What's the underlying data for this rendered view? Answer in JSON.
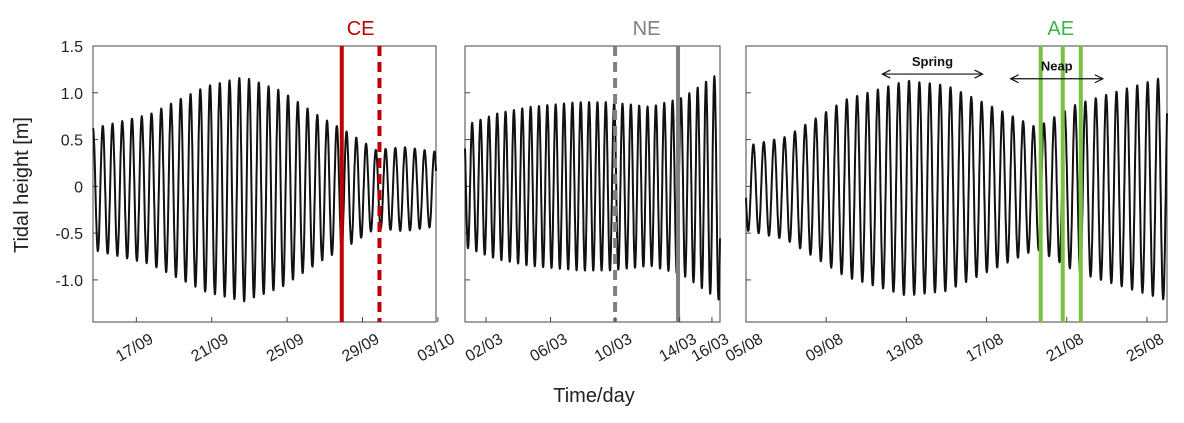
{
  "chart_data": {
    "type": "line",
    "ylabel": "Tidal height [m]",
    "xlabel": "Time/day",
    "ylim": [
      -1.45,
      1.5
    ],
    "yticks": [
      "1.5",
      "1.0",
      "0.5",
      "0",
      "-0.5",
      "-1.0"
    ],
    "yticks_values": [
      1.5,
      1.0,
      0.5,
      0,
      -0.5,
      -1.0
    ],
    "grid": false,
    "series_color": "#111111",
    "panels": [
      {
        "title": "CE",
        "title_color": "#c00000",
        "xticks": [
          "17/09",
          "21/09",
          "25/09",
          "29/09",
          "03/10"
        ],
        "xticks_days": [
          2.3,
          6.3,
          10.3,
          14.3,
          18.3
        ],
        "xlim_days": [
          0,
          18.2
        ],
        "series": {
          "t_start": 0,
          "t_end": 18.2,
          "envelope_days": [
            0,
            3,
            6,
            8,
            10,
            12,
            13.6,
            15,
            16.5,
            18.2
          ],
          "envelope_amps": [
            0.65,
            0.8,
            1.1,
            1.2,
            1.05,
            0.78,
            0.6,
            0.42,
            0.45,
            0.4
          ],
          "offset": -0.03
        },
        "vlines": [
          {
            "day": 13.2,
            "style": "solid",
            "color": "#c00000"
          },
          {
            "day": 15.2,
            "style": "dashed",
            "color": "#c00000"
          }
        ],
        "annotations": []
      },
      {
        "title": "NE",
        "title_color": "#808080",
        "xticks": [
          "02/03",
          "06/03",
          "10/03",
          "14/03",
          "16/03"
        ],
        "xticks_days": [
          1.3,
          5.3,
          9.3,
          13.3,
          15.3
        ],
        "xlim_days": [
          0,
          15.8
        ],
        "series": {
          "t_start": 0,
          "t_end": 15.8,
          "envelope_days": [
            0,
            2,
            4,
            7,
            9,
            11.5,
            13.5,
            15.8
          ],
          "envelope_amps": [
            0.65,
            0.78,
            0.85,
            0.9,
            0.9,
            0.85,
            0.95,
            1.22
          ],
          "offset": 0
        },
        "vlines": [
          {
            "day": 9.3,
            "style": "dashed",
            "color": "#808080"
          },
          {
            "day": 13.2,
            "style": "solid",
            "color": "#808080"
          }
        ],
        "annotations": []
      },
      {
        "title": "AE",
        "title_color": "#3cb44b",
        "xticks": [
          "05/08",
          "09/08",
          "13/08",
          "17/08",
          "21/08",
          "25/08"
        ],
        "xticks_days": [
          0,
          4,
          8,
          12,
          16,
          20
        ],
        "xlim_days": [
          0,
          21
        ],
        "series": {
          "t_start": 0,
          "t_end": 21,
          "envelope_days": [
            0,
            2,
            5,
            8,
            10,
            12.5,
            14.5,
            16.5,
            18,
            21
          ],
          "envelope_amps": [
            0.45,
            0.55,
            0.95,
            1.15,
            1.1,
            0.85,
            0.65,
            0.9,
            1.0,
            1.2
          ],
          "offset": -0.02
        },
        "vlines": [
          {
            "day": 14.7,
            "style": "solid",
            "color": "#7ac142"
          },
          {
            "day": 15.8,
            "style": "solid",
            "color": "#7ac142"
          },
          {
            "day": 16.7,
            "style": "solid",
            "color": "#7ac142"
          }
        ],
        "annotations": [
          {
            "label": "Spring",
            "from_day": 6.8,
            "to_day": 11.8,
            "y": 1.2
          },
          {
            "label": "Neap",
            "from_day": 13.2,
            "to_day": 17.8,
            "y": 1.15
          }
        ]
      }
    ]
  }
}
